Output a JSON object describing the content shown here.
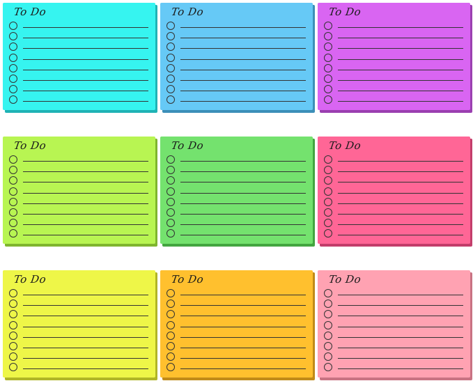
{
  "notes": [
    {
      "title": "To Do",
      "color": "#36f4f0",
      "shadow": "#1fb3b5",
      "rows": 8
    },
    {
      "title": "To Do",
      "color": "#66c9f6",
      "shadow": "#3c8fb8",
      "rows": 8
    },
    {
      "title": "To Do",
      "color": "#d965f2",
      "shadow": "#9a3fb0",
      "rows": 8
    },
    {
      "title": "To Do",
      "color": "#b8f552",
      "shadow": "#7fb52e",
      "rows": 8
    },
    {
      "title": "To Do",
      "color": "#74e26e",
      "shadow": "#43a540",
      "rows": 8
    },
    {
      "title": "To Do",
      "color": "#ff6696",
      "shadow": "#c23d6a",
      "rows": 8
    },
    {
      "title": "To Do",
      "color": "#eef648",
      "shadow": "#b0b526",
      "rows": 8
    },
    {
      "title": "To Do",
      "color": "#ffc02e",
      "shadow": "#c08a18",
      "rows": 8
    },
    {
      "title": "To Do",
      "color": "#ffa2b2",
      "shadow": "#c87282",
      "rows": 8
    }
  ]
}
